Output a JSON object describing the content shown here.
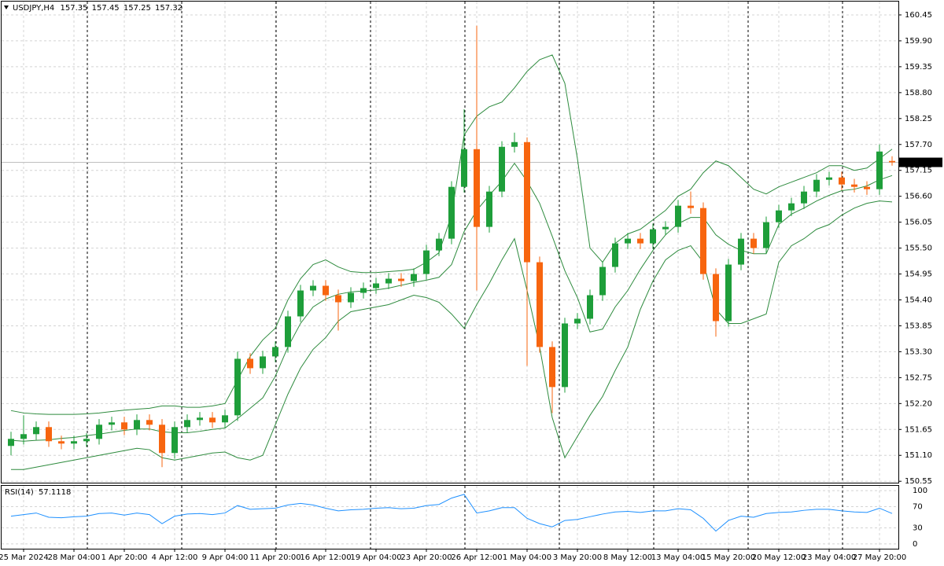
{
  "chart_data": {
    "type": "candlestick",
    "symbol": "USDJPY,H4",
    "categories": [
      null,
      "25 Mar 2024",
      null,
      null,
      null,
      "28 Mar 04:00",
      null,
      null,
      null,
      "1 Apr 20:00",
      null,
      null,
      null,
      "4 Apr 12:00",
      null,
      null,
      null,
      "9 Apr 04:00",
      null,
      null,
      null,
      "11 Apr 20:00",
      null,
      null,
      null,
      "16 Apr 12:00",
      null,
      null,
      null,
      "19 Apr 04:00",
      null,
      null,
      null,
      "23 Apr 20:00",
      null,
      null,
      null,
      "26 Apr 12:00",
      null,
      null,
      null,
      "1 May 04:00",
      null,
      null,
      null,
      "3 May 20:00",
      null,
      null,
      null,
      "8 May 12:00",
      null,
      null,
      null,
      "13 May 04:00",
      null,
      null,
      null,
      "15 May 20:00",
      null,
      null,
      null,
      "20 May 12:00",
      null,
      null,
      null,
      "23 May 04:00",
      null,
      null,
      null,
      "27 May 20:00",
      null
    ],
    "candles": {
      "open": [
        151.3,
        151.45,
        151.55,
        151.7,
        151.4,
        151.35,
        151.4,
        151.45,
        151.75,
        151.8,
        151.65,
        151.85,
        151.75,
        151.15,
        151.7,
        151.85,
        151.9,
        151.8,
        151.95,
        153.15,
        152.95,
        153.2,
        153.4,
        154.05,
        154.6,
        154.7,
        154.5,
        154.35,
        154.55,
        154.65,
        154.75,
        154.85,
        154.8,
        154.95,
        155.45,
        155.7,
        156.8,
        157.6,
        155.95,
        156.7,
        157.65,
        157.75,
        155.2,
        153.4,
        152.55,
        153.9,
        154.0,
        154.5,
        155.1,
        155.6,
        155.7,
        155.6,
        155.9,
        155.95,
        156.4,
        156.35,
        154.95,
        153.95,
        155.15,
        155.7,
        155.5,
        156.05,
        156.3,
        156.45,
        156.7,
        156.95,
        157.0,
        156.85,
        156.8,
        156.75,
        157.35
      ],
      "high": [
        151.6,
        151.95,
        151.82,
        151.82,
        151.52,
        151.52,
        151.57,
        151.87,
        151.92,
        151.92,
        151.97,
        151.97,
        151.87,
        151.82,
        151.97,
        152.02,
        152.02,
        152.07,
        153.3,
        153.27,
        153.32,
        153.52,
        154.17,
        154.72,
        154.82,
        154.82,
        154.62,
        154.67,
        154.77,
        154.87,
        154.97,
        154.97,
        155.07,
        155.57,
        155.82,
        156.92,
        158.45,
        160.22,
        156.82,
        157.77,
        157.95,
        157.85,
        155.32,
        153.52,
        154.02,
        154.12,
        154.62,
        155.22,
        155.72,
        155.82,
        155.82,
        156.02,
        156.07,
        156.52,
        156.7,
        156.47,
        155.07,
        155.27,
        155.82,
        155.82,
        156.17,
        156.42,
        156.57,
        156.82,
        157.07,
        157.12,
        157.12,
        156.97,
        156.92,
        157.7,
        157.45
      ],
      "low": [
        151.1,
        151.33,
        151.43,
        151.28,
        151.23,
        151.23,
        151.28,
        151.33,
        151.63,
        151.53,
        151.53,
        151.63,
        150.85,
        151.03,
        151.58,
        151.73,
        151.68,
        151.68,
        151.83,
        152.83,
        152.83,
        153.08,
        153.28,
        153.93,
        154.48,
        154.38,
        153.75,
        154.23,
        154.43,
        154.53,
        154.63,
        154.68,
        154.68,
        154.83,
        155.33,
        155.58,
        156.68,
        154.6,
        155.83,
        156.58,
        157.53,
        153.0,
        153.28,
        152.0,
        152.43,
        153.78,
        153.88,
        154.38,
        154.98,
        155.48,
        155.48,
        155.48,
        155.78,
        155.83,
        156.23,
        154.83,
        153.62,
        153.83,
        155.03,
        155.38,
        155.38,
        155.93,
        156.18,
        156.33,
        156.58,
        156.83,
        156.73,
        156.68,
        156.63,
        156.63,
        157.25
      ],
      "close": [
        151.45,
        151.55,
        151.7,
        151.4,
        151.35,
        151.4,
        151.45,
        151.75,
        151.8,
        151.65,
        151.85,
        151.75,
        151.15,
        151.7,
        151.85,
        151.9,
        151.8,
        151.95,
        153.15,
        152.95,
        153.2,
        153.4,
        154.05,
        154.6,
        154.7,
        154.5,
        154.35,
        154.55,
        154.65,
        154.75,
        154.85,
        154.8,
        154.95,
        155.45,
        155.7,
        156.8,
        157.6,
        155.95,
        156.7,
        157.65,
        157.75,
        155.2,
        153.4,
        152.55,
        153.9,
        154.0,
        154.5,
        155.1,
        155.6,
        155.7,
        155.6,
        155.9,
        155.95,
        156.4,
        156.35,
        154.95,
        153.95,
        155.15,
        155.7,
        155.5,
        156.05,
        156.3,
        156.45,
        156.7,
        156.95,
        157.0,
        156.85,
        156.8,
        156.75,
        157.55,
        157.32
      ]
    },
    "up_color": "#1e9e3a",
    "down_color": "#f7650f",
    "bollinger": {
      "color": "#2e8b3e",
      "upper": [
        152.05,
        152.0,
        151.98,
        151.97,
        151.97,
        151.97,
        151.98,
        152.0,
        152.03,
        152.06,
        152.08,
        152.1,
        152.15,
        152.15,
        152.12,
        152.12,
        152.15,
        152.2,
        152.7,
        153.2,
        153.55,
        153.8,
        154.4,
        154.85,
        155.15,
        155.25,
        155.1,
        155.0,
        154.98,
        154.98,
        155.0,
        155.02,
        155.05,
        155.2,
        155.4,
        156.2,
        157.9,
        158.3,
        158.5,
        158.6,
        158.9,
        159.25,
        159.5,
        159.6,
        159.0,
        157.4,
        155.5,
        155.2,
        155.6,
        155.8,
        155.9,
        156.1,
        156.3,
        156.6,
        156.75,
        157.1,
        157.35,
        157.25,
        157.0,
        156.75,
        156.65,
        156.8,
        156.9,
        157.0,
        157.1,
        157.25,
        157.25,
        157.15,
        157.2,
        157.4,
        157.6
      ],
      "middle": [
        151.42,
        151.4,
        151.42,
        151.43,
        151.46,
        151.48,
        151.52,
        151.55,
        151.59,
        151.63,
        151.66,
        151.66,
        151.6,
        151.58,
        151.58,
        151.61,
        151.65,
        151.68,
        151.88,
        152.1,
        152.32,
        152.78,
        153.4,
        153.9,
        154.25,
        154.42,
        154.52,
        154.57,
        154.59,
        154.61,
        154.65,
        154.71,
        154.77,
        154.82,
        154.88,
        155.15,
        155.85,
        156.3,
        156.62,
        156.92,
        157.3,
        156.92,
        156.45,
        155.75,
        155.02,
        154.45,
        153.72,
        153.78,
        154.25,
        154.6,
        155.05,
        155.45,
        155.78,
        156.02,
        156.15,
        156.15,
        155.78,
        155.58,
        155.45,
        155.38,
        155.38,
        156.0,
        156.22,
        156.35,
        156.5,
        156.62,
        156.72,
        156.75,
        156.82,
        156.95,
        157.04
      ],
      "lower": [
        150.8,
        150.8,
        150.85,
        150.9,
        150.95,
        151.0,
        151.05,
        151.1,
        151.15,
        151.2,
        151.25,
        151.22,
        151.05,
        151.0,
        151.05,
        151.1,
        151.15,
        151.17,
        151.05,
        151.0,
        151.1,
        151.75,
        152.4,
        152.95,
        153.35,
        153.6,
        153.95,
        154.15,
        154.2,
        154.25,
        154.3,
        154.4,
        154.5,
        154.45,
        154.35,
        154.1,
        153.8,
        154.3,
        154.75,
        155.25,
        155.7,
        154.6,
        153.4,
        151.9,
        151.05,
        151.5,
        151.95,
        152.35,
        152.9,
        153.4,
        154.2,
        154.8,
        155.25,
        155.45,
        155.55,
        155.2,
        154.2,
        153.9,
        153.9,
        154.0,
        154.1,
        155.2,
        155.55,
        155.7,
        155.9,
        156.0,
        156.2,
        156.35,
        156.45,
        156.5,
        156.48
      ]
    },
    "ylim": [
      150.52,
      160.75
    ],
    "yticks": [
      160.45,
      {
        "value": 159.9,
        "label": "159.90"
      },
      159.35,
      {
        "value": 158.8,
        "label": "158.80"
      },
      158.25,
      {
        "value": 157.7,
        "label": "157.70"
      },
      157.15,
      {
        "value": 156.6,
        "label": "156.60"
      },
      156.05,
      {
        "value": 155.5,
        "label": "155.50"
      },
      154.95,
      {
        "value": 154.4,
        "label": "154.40"
      },
      153.85,
      {
        "value": 153.3,
        "label": "153.30"
      },
      152.75,
      {
        "value": 152.2,
        "label": "152.20"
      },
      151.65,
      {
        "value": 151.1,
        "label": "151.10"
      },
      150.55
    ],
    "grid": true,
    "indicator": {
      "type": "line",
      "title": "RSI(14)",
      "color": "#1e90ff",
      "values": [
        52,
        55,
        58,
        50,
        49,
        51,
        52,
        57,
        58,
        54,
        58,
        55,
        38,
        52,
        56,
        57,
        55,
        58,
        72,
        65,
        66,
        67,
        73,
        76,
        73,
        67,
        62,
        64,
        65,
        67,
        68,
        66,
        67,
        72,
        74,
        86,
        93,
        58,
        62,
        68,
        68,
        48,
        38,
        32,
        44,
        46,
        51,
        56,
        60,
        61,
        59,
        62,
        62,
        66,
        64,
        48,
        24,
        44,
        52,
        50,
        57,
        59,
        60,
        63,
        65,
        65,
        62,
        60,
        59,
        67,
        57.1118
      ],
      "ylim": [
        -9,
        109
      ],
      "yticks": [
        0,
        30,
        70,
        100
      ]
    }
  }
}
